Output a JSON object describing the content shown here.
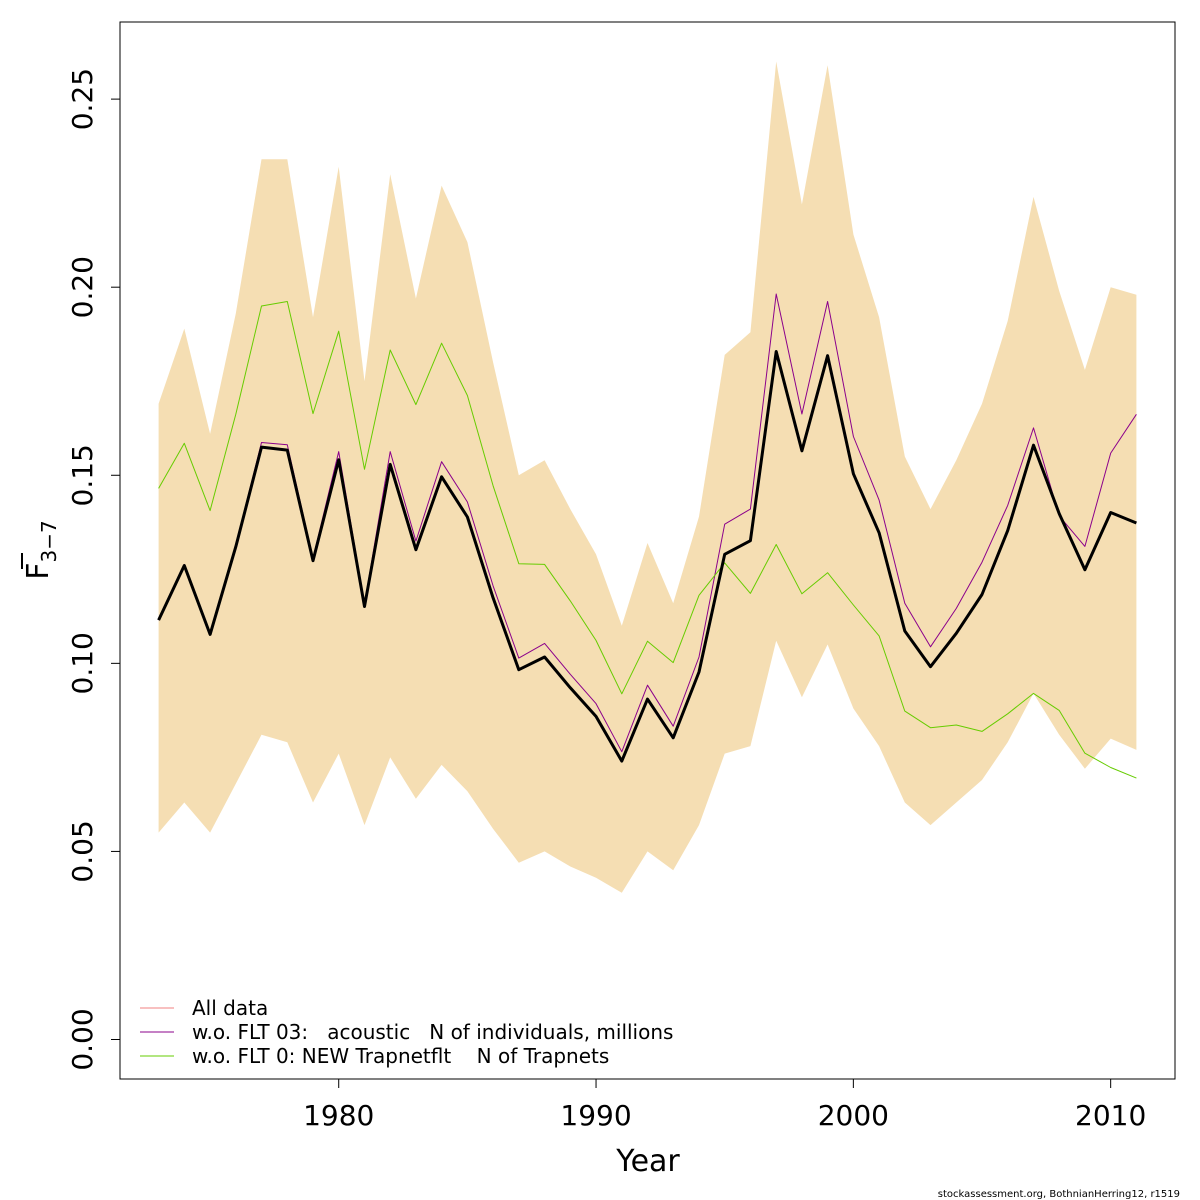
{
  "chart_data": {
    "type": "line",
    "xlabel": "Year",
    "ylabel": {
      "main": "F",
      "subscript": "3−7"
    },
    "xlim": [
      1971.5,
      2012.5
    ],
    "ylim": [
      -0.0105,
      0.2705
    ],
    "x_ticks": [
      1980,
      1990,
      2000,
      2010
    ],
    "x_tick_labels": [
      "1980",
      "1990",
      "2000",
      "2010"
    ],
    "y_ticks": [
      0.0,
      0.05,
      0.1,
      0.15,
      0.2,
      0.25
    ],
    "y_tick_labels": [
      "0.00",
      "0.05",
      "0.10",
      "0.15",
      "0.20",
      "0.25"
    ],
    "legend_position": "bottom-left",
    "x": [
      1973,
      1974,
      1975,
      1976,
      1977,
      1978,
      1979,
      1980,
      1981,
      1982,
      1983,
      1984,
      1985,
      1986,
      1987,
      1988,
      1989,
      1990,
      1991,
      1992,
      1993,
      1994,
      1995,
      1996,
      1997,
      1998,
      1999,
      2000,
      2001,
      2002,
      2003,
      2004,
      2005,
      2006,
      2007,
      2008,
      2009,
      2010,
      2011
    ],
    "band": {
      "name": "confidence interval",
      "color": "#F5DEB3",
      "upper": [
        0.169,
        0.189,
        0.161,
        0.193,
        0.234,
        0.234,
        0.192,
        0.232,
        0.175,
        0.23,
        0.197,
        0.227,
        0.212,
        0.18,
        0.15,
        0.154,
        0.141,
        0.129,
        0.11,
        0.132,
        0.116,
        0.139,
        0.182,
        0.188,
        0.26,
        0.222,
        0.259,
        0.214,
        0.192,
        0.155,
        0.141,
        0.154,
        0.169,
        0.191,
        0.224,
        0.199,
        0.178,
        0.2,
        0.198
      ],
      "lower": [
        0.055,
        0.063,
        0.055,
        0.068,
        0.081,
        0.079,
        0.063,
        0.076,
        0.057,
        0.075,
        0.064,
        0.073,
        0.066,
        0.056,
        0.047,
        0.05,
        0.046,
        0.043,
        0.039,
        0.05,
        0.045,
        0.057,
        0.076,
        0.078,
        0.106,
        0.091,
        0.105,
        0.088,
        0.078,
        0.063,
        0.057,
        0.063,
        0.069,
        0.079,
        0.092,
        0.081,
        0.072,
        0.08,
        0.077
      ]
    },
    "series": [
      {
        "name": "w.o. FLT 03:   acoustic   N of individuals, millions",
        "color": "#8B008B",
        "width": 1,
        "values": [
          0.1115,
          0.1263,
          0.1077,
          0.1315,
          0.1587,
          0.1581,
          0.128,
          0.1563,
          0.1158,
          0.1563,
          0.1325,
          0.1536,
          0.1429,
          0.1206,
          0.1014,
          0.1053,
          0.0971,
          0.0893,
          0.0765,
          0.0942,
          0.0833,
          0.1017,
          0.137,
          0.141,
          0.1982,
          0.1663,
          0.1962,
          0.1603,
          0.1434,
          0.116,
          0.1044,
          0.1146,
          0.1269,
          0.142,
          0.1626,
          0.1392,
          0.1311,
          0.1559,
          0.1662
        ]
      },
      {
        "name": "w.o. FLT 0: NEW Trapnetflt    N of Trapnets",
        "color": "#66CC00",
        "width": 1,
        "values": [
          0.1465,
          0.1585,
          0.1406,
          0.1662,
          0.195,
          0.1962,
          0.1664,
          0.1883,
          0.1516,
          0.1833,
          0.1688,
          0.1851,
          0.1712,
          0.1472,
          0.1265,
          0.1263,
          0.1166,
          0.1061,
          0.0919,
          0.1059,
          0.1002,
          0.1181,
          0.1267,
          0.1186,
          0.1316,
          0.1185,
          0.1241,
          0.1155,
          0.1073,
          0.0873,
          0.0829,
          0.0836,
          0.0819,
          0.0866,
          0.092,
          0.0875,
          0.0761,
          0.0723,
          0.0695
        ]
      },
      {
        "name": "All data",
        "color": "#000000",
        "legend_color": "#F08080",
        "width": 3,
        "values": [
          0.1115,
          0.126,
          0.1077,
          0.131,
          0.1575,
          0.1567,
          0.1273,
          0.1541,
          0.1151,
          0.1529,
          0.1302,
          0.1496,
          0.1389,
          0.1174,
          0.0983,
          0.1017,
          0.0935,
          0.0859,
          0.074,
          0.0905,
          0.0802,
          0.0977,
          0.129,
          0.1326,
          0.1829,
          0.1565,
          0.1818,
          0.1504,
          0.1347,
          0.1086,
          0.0991,
          0.108,
          0.1183,
          0.1353,
          0.158,
          0.1398,
          0.1249,
          0.1401,
          0.1373
        ]
      }
    ],
    "legend": [
      {
        "label": "All data",
        "color": "#F08080"
      },
      {
        "label": "w.o. FLT 03:   acoustic   N of individuals, millions",
        "color": "#8B008B"
      },
      {
        "label": "w.o. FLT 0: NEW Trapnetflt    N of Trapnets",
        "color": "#66CC00"
      }
    ]
  },
  "credit": "stockassessment.org, BothnianHerring12, r1519"
}
